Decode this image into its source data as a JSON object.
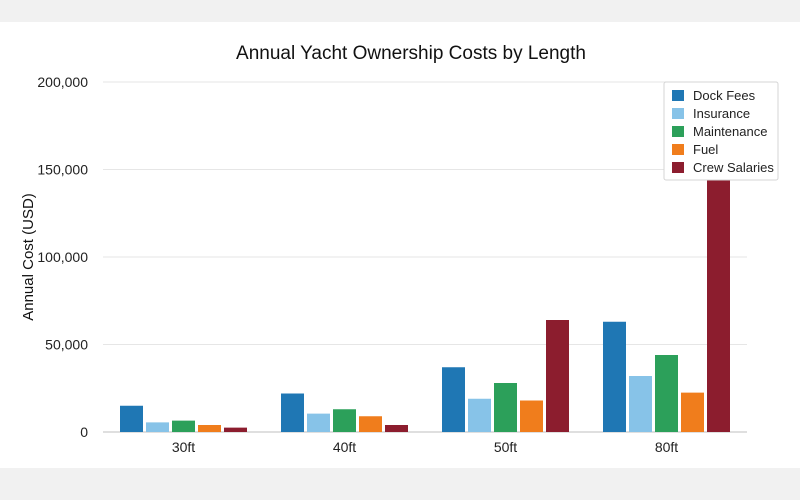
{
  "chart_data": {
    "type": "bar",
    "title": "Annual Yacht Ownership Costs by Length",
    "xlabel": "",
    "ylabel": "Annual Cost (USD)",
    "categories": [
      "30ft",
      "40ft",
      "50ft",
      "80ft"
    ],
    "ylim": [
      0,
      200000
    ],
    "yticks": [
      0,
      50000,
      100000,
      150000,
      200000
    ],
    "ytick_labels": [
      "0",
      "50,000",
      "100,000",
      "150,000",
      "200,000"
    ],
    "grid": true,
    "legend_position": "top-right",
    "series": [
      {
        "name": "Dock Fees",
        "color": "#1f77b4",
        "values": [
          15000,
          22000,
          37000,
          63000
        ]
      },
      {
        "name": "Insurance",
        "color": "#87c3e8",
        "values": [
          5500,
          10500,
          19000,
          32000
        ]
      },
      {
        "name": "Maintenance",
        "color": "#2ca05a",
        "values": [
          6500,
          13000,
          28000,
          44000
        ]
      },
      {
        "name": "Fuel",
        "color": "#f07d1c",
        "values": [
          4000,
          9000,
          18000,
          22500
        ]
      },
      {
        "name": "Crew Salaries",
        "color": "#8c1d2e",
        "values": [
          2500,
          4000,
          64000,
          146000
        ]
      }
    ]
  }
}
